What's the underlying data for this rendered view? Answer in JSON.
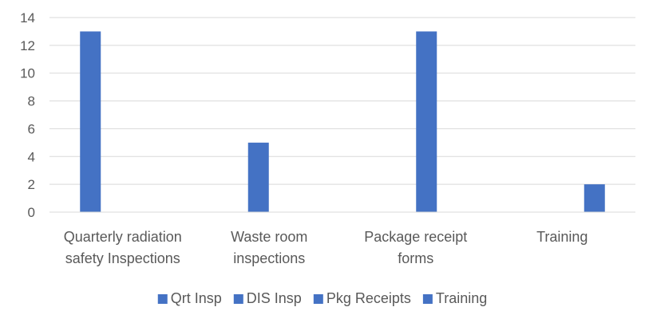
{
  "chart_data": {
    "type": "bar",
    "title": "",
    "xlabel": "",
    "ylabel": "",
    "categories": [
      [
        "Quarterly radiation",
        "safety Inspections"
      ],
      [
        "Waste room",
        "inspections"
      ],
      [
        "Package receipt",
        "forms"
      ],
      [
        "Training"
      ]
    ],
    "series": [
      {
        "name": "Qrt Insp",
        "values": [
          13,
          0,
          0,
          0
        ]
      },
      {
        "name": "DIS Insp",
        "values": [
          0,
          5,
          0,
          0
        ]
      },
      {
        "name": "Pkg Receipts",
        "values": [
          0,
          0,
          13,
          0
        ]
      },
      {
        "name": "Training",
        "values": [
          0,
          0,
          0,
          2
        ]
      }
    ],
    "ylim": [
      0,
      14
    ],
    "yticks": [
      0,
      2,
      4,
      6,
      8,
      10,
      12,
      14
    ],
    "grid": true,
    "legend_position": "bottom",
    "bar_color": "#4472c4"
  }
}
